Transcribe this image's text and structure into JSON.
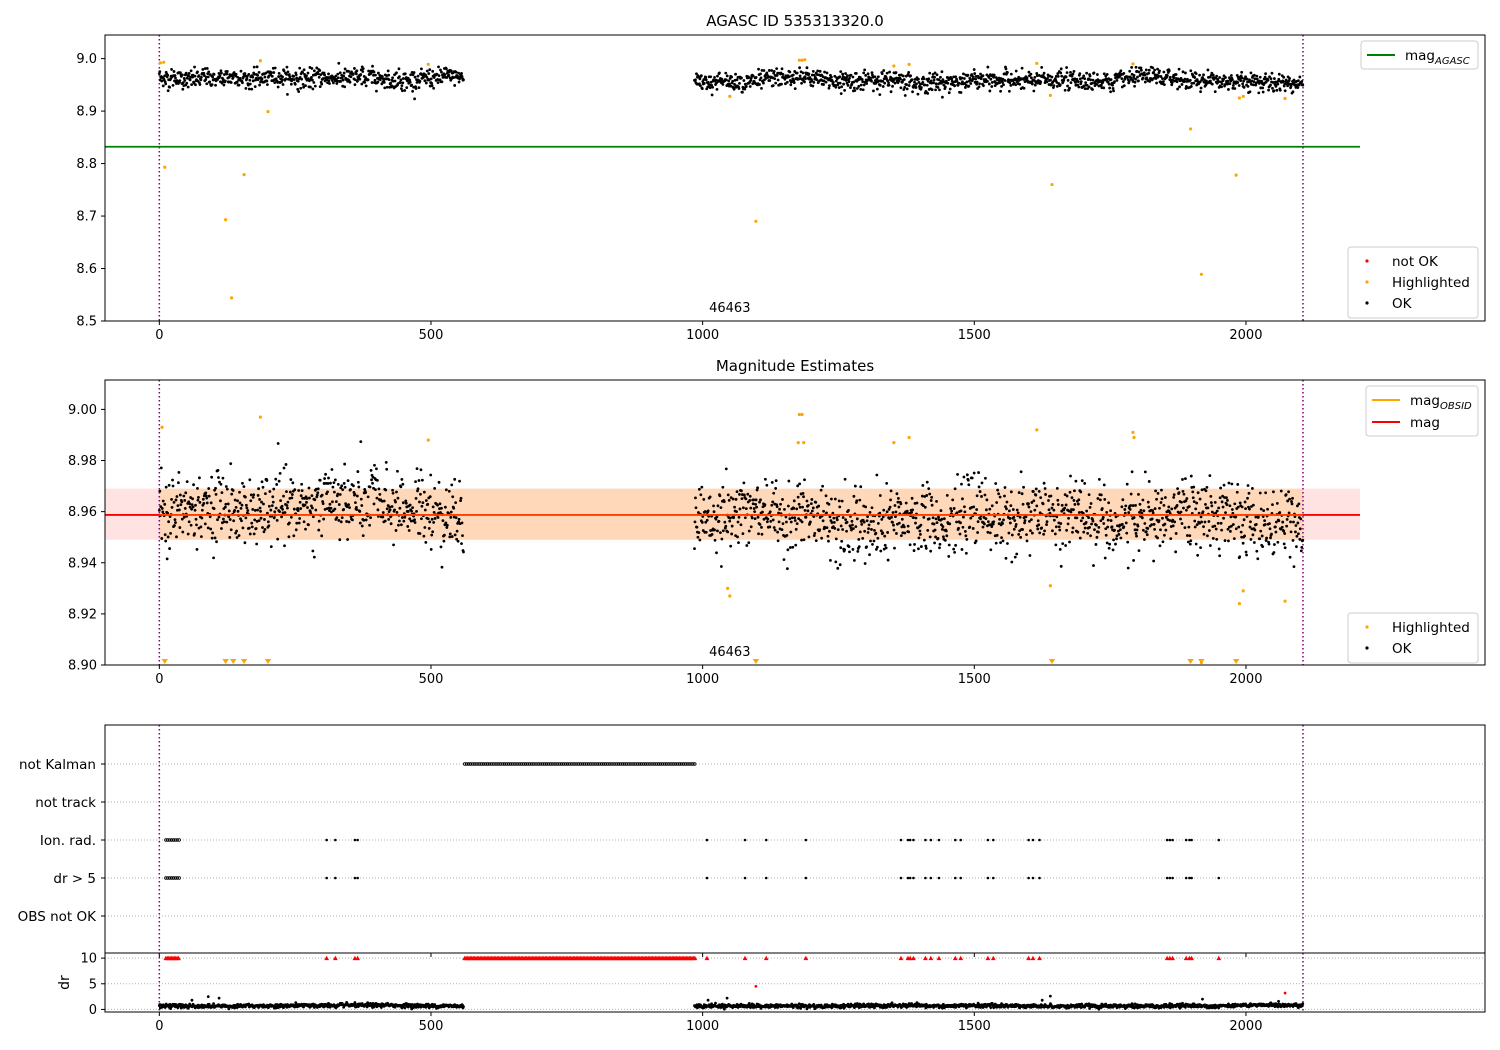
{
  "chart_data": [
    {
      "type": "scatter",
      "title": "AGASC ID 535313320.0",
      "xlim": [
        -100,
        2440
      ],
      "ylim": [
        8.5,
        9.045
      ],
      "x_ticks": [
        0,
        500,
        1000,
        1500,
        2000
      ],
      "y_ticks": [
        8.5,
        8.6,
        8.7,
        8.8,
        8.9,
        9.0
      ],
      "y_tick_labels": [
        "8.5",
        "8.6",
        "8.7",
        "8.8",
        "8.9",
        "9.0"
      ],
      "obsid_label": "46463",
      "obsid_label_x": 1050,
      "obsid_boundaries": [
        0,
        2105
      ],
      "ok_series": {
        "segments": [
          {
            "x_start": 0,
            "x_end": 560,
            "center": 8.963,
            "spread": 0.012
          },
          {
            "x_start": 985,
            "x_end": 2105,
            "center": 8.958,
            "spread": 0.012
          }
        ]
      },
      "agasc_mag": 8.832,
      "agasc_mag_xrange": [
        -100,
        2210
      ],
      "highlighted": [
        [
          2,
          8.992
        ],
        [
          8,
          8.993
        ],
        [
          10,
          8.793
        ],
        [
          122,
          8.693
        ],
        [
          133,
          8.544
        ],
        [
          156,
          8.779
        ],
        [
          186,
          8.996
        ],
        [
          200,
          8.899
        ],
        [
          495,
          8.989
        ],
        [
          1050,
          8.928
        ],
        [
          1098,
          8.69
        ],
        [
          1178,
          8.997
        ],
        [
          1183,
          8.997
        ],
        [
          1188,
          8.998
        ],
        [
          1352,
          8.986
        ],
        [
          1380,
          8.989
        ],
        [
          1615,
          8.991
        ],
        [
          1640,
          8.93
        ],
        [
          1643,
          8.76
        ],
        [
          1792,
          8.99
        ],
        [
          1898,
          8.866
        ],
        [
          1918,
          8.589
        ],
        [
          1982,
          8.778
        ],
        [
          1988,
          8.925
        ],
        [
          1995,
          8.928
        ],
        [
          2072,
          8.924
        ]
      ],
      "legend_lines": [
        {
          "label": "mag",
          "sub": "AGASC",
          "color": "#008000"
        }
      ],
      "legend_points": [
        {
          "label": "not OK",
          "color": "#ff0000"
        },
        {
          "label": "Highlighted",
          "color": "#ffa500"
        },
        {
          "label": "OK",
          "color": "#000000"
        }
      ]
    },
    {
      "type": "scatter",
      "title": "Magnitude Estimates",
      "xlim": [
        -100,
        2440
      ],
      "ylim": [
        8.9,
        9.0115
      ],
      "x_ticks": [
        0,
        500,
        1000,
        1500,
        2000
      ],
      "y_ticks": [
        8.9,
        8.92,
        8.94,
        8.96,
        8.98,
        9.0
      ],
      "y_tick_labels": [
        "8.90",
        "8.92",
        "8.94",
        "8.96",
        "8.98",
        "9.00"
      ],
      "obsid_label": "46463",
      "obsid_label_x": 1050,
      "obsid_boundaries": [
        0,
        2105
      ],
      "mag_line": 8.9587,
      "mag_band": [
        8.949,
        8.969
      ],
      "obsid_band_xrange": [
        0,
        2105
      ],
      "mag_band_xrange": [
        -100,
        2210
      ],
      "ok_series": {
        "segments": [
          {
            "x_start": 0,
            "x_end": 560,
            "center": 8.96,
            "spread": 0.009
          },
          {
            "x_start": 985,
            "x_end": 2105,
            "center": 8.957,
            "spread": 0.009
          }
        ]
      },
      "highlighted": [
        [
          5,
          8.993
        ],
        [
          186,
          8.997
        ],
        [
          495,
          8.988
        ],
        [
          1050,
          8.927
        ],
        [
          1046,
          8.93
        ],
        [
          1178,
          8.998
        ],
        [
          1183,
          8.998
        ],
        [
          1176,
          8.987
        ],
        [
          1186,
          8.987
        ],
        [
          1352,
          8.987
        ],
        [
          1380,
          8.989
        ],
        [
          1615,
          8.992
        ],
        [
          1640,
          8.931
        ],
        [
          1792,
          8.991
        ],
        [
          1794,
          8.989
        ],
        [
          1988,
          8.924
        ],
        [
          1995,
          8.929
        ],
        [
          2072,
          8.925
        ],
        [
          1918,
          8.901
        ]
      ],
      "below_range_markers": [
        10,
        122,
        136,
        156,
        200,
        1098,
        1643,
        1898,
        1918,
        1982
      ],
      "legend_lines": [
        {
          "label": "mag",
          "sub": "OBSID",
          "color": "#ffa500"
        },
        {
          "label": "mag",
          "sub": "",
          "color": "#ff0000"
        }
      ],
      "legend_points": [
        {
          "label": "Highlighted",
          "color": "#ffa500"
        },
        {
          "label": "OK",
          "color": "#000000"
        }
      ]
    },
    {
      "type": "scatter",
      "title": "",
      "xlim": [
        -100,
        2440
      ],
      "categories": [
        "not Kalman",
        "not track",
        "Ion. rad.",
        "dr > 5",
        "OBS not OK"
      ],
      "obsid_boundaries": [
        0,
        2105
      ],
      "flags": {
        "not Kalman": {
          "ranges": [
            [
              562,
              988
            ]
          ],
          "points": []
        },
        "not track": {
          "ranges": [],
          "points": []
        },
        "Ion. rad.": {
          "ranges": [
            [
              12,
              38
            ]
          ],
          "points": [
            308,
            324,
            360,
            365,
            1008,
            1078,
            1117,
            1190,
            1365,
            1378,
            1382,
            1388,
            1410,
            1420,
            1435,
            1465,
            1475,
            1525,
            1535,
            1600,
            1608,
            1620,
            1855,
            1860,
            1865,
            1890,
            1896,
            1900,
            1950
          ]
        },
        "dr > 5": {
          "ranges": [
            [
              12,
              38
            ]
          ],
          "points": [
            308,
            324,
            360,
            365,
            1008,
            1078,
            1117,
            1190,
            1365,
            1378,
            1382,
            1388,
            1410,
            1420,
            1435,
            1465,
            1475,
            1525,
            1535,
            1600,
            1608,
            1620,
            1855,
            1860,
            1865,
            1890,
            1896,
            1900,
            1950
          ]
        },
        "OBS not OK": {
          "ranges": [],
          "points": []
        }
      }
    },
    {
      "type": "scatter",
      "ylabel": "dr",
      "xlim": [
        -100,
        2440
      ],
      "ylim": [
        -0.5,
        11
      ],
      "x_ticks": [
        0,
        500,
        1000,
        1500,
        2000
      ],
      "y_ticks": [
        0,
        5,
        10
      ],
      "y_tick_labels": [
        "0",
        "5",
        "10"
      ],
      "obsid_boundaries": [
        0,
        2105
      ],
      "ok_series": {
        "segments": [
          {
            "x_start": 0,
            "x_end": 560,
            "center": 0.7,
            "spread": 0.25
          },
          {
            "x_start": 985,
            "x_end": 2105,
            "center": 0.7,
            "spread": 0.25
          }
        ]
      },
      "outliers": [
        [
          60,
          1.8
        ],
        [
          90,
          2.5
        ],
        [
          110,
          2.2
        ],
        [
          1010,
          1.8
        ],
        [
          1045,
          2.2
        ],
        [
          1640,
          2.6
        ],
        [
          1625,
          1.8
        ],
        [
          2060,
          1.6
        ],
        [
          1920,
          2.0
        ]
      ],
      "capped_ranges": [
        [
          12,
          38
        ],
        [
          562,
          988
        ]
      ],
      "capped_points": [
        308,
        324,
        360,
        365,
        1008,
        1078,
        1117,
        1190,
        1365,
        1378,
        1382,
        1388,
        1410,
        1420,
        1435,
        1465,
        1475,
        1525,
        1535,
        1600,
        1608,
        1620,
        1855,
        1860,
        1865,
        1890,
        1896,
        1900,
        1950
      ],
      "notok_points": [
        [
          1098,
          4.5
        ],
        [
          2072,
          3.2
        ]
      ]
    }
  ]
}
